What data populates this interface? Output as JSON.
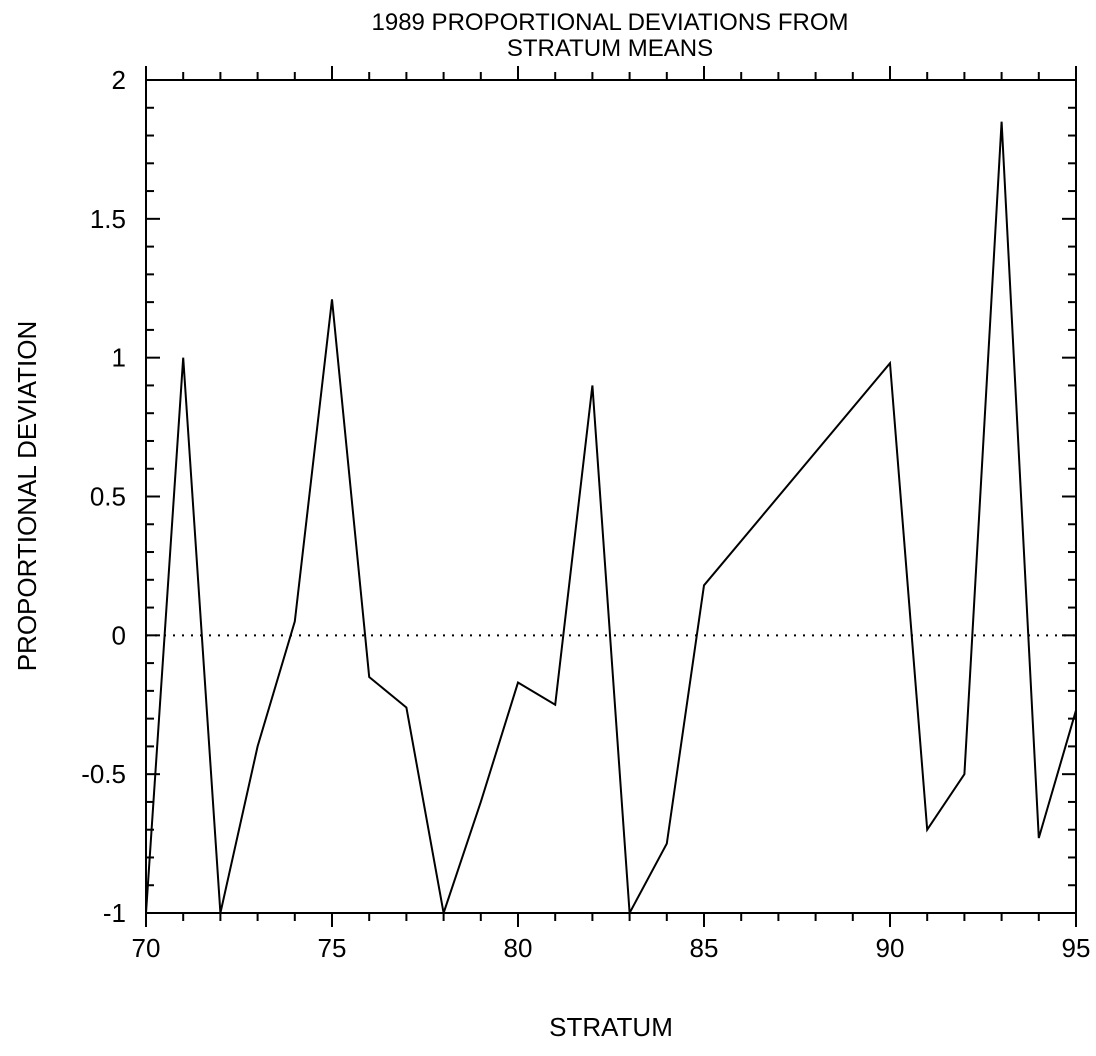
{
  "chart_data": {
    "type": "line",
    "title": [
      "1989 PROPORTIONAL DEVIATIONS FROM",
      "STRATUM MEANS"
    ],
    "x_label": "STRATUM",
    "y_label": "PROPORTIONAL DEVIATION",
    "x": [
      70,
      71,
      72,
      73,
      74,
      75,
      76,
      77,
      78,
      79,
      80,
      81,
      82,
      83,
      84,
      85,
      90,
      91,
      92,
      93,
      94,
      95
    ],
    "series": [
      {
        "color": "#000000",
        "values": [
          -1,
          1,
          -1,
          -0.4,
          0.05,
          1.21,
          -0.15,
          -0.26,
          -1,
          -0.6,
          -0.17,
          -0.25,
          0.9,
          -1,
          -0.75,
          0.18,
          0.98,
          -0.7,
          -0.5,
          1.85,
          -0.73,
          -0.27
        ]
      }
    ],
    "xlim": [
      70,
      95
    ],
    "ylim": [
      -1,
      2
    ],
    "xticks": [
      70,
      75,
      80,
      85,
      90,
      95
    ],
    "yticks": [
      -1,
      -0.5,
      0,
      0.5,
      1,
      1.5,
      2
    ],
    "xticks_minor": [
      71,
      72,
      73,
      74,
      76,
      77,
      78,
      79,
      81,
      82,
      83,
      84,
      86,
      87,
      88,
      89,
      91,
      92,
      93,
      94
    ],
    "yticks_minor": [
      -0.9,
      -0.8,
      -0.7,
      -0.6,
      -0.4,
      -0.3,
      -0.2,
      -0.1,
      0.1,
      0.2,
      0.3,
      0.4,
      0.6,
      0.7,
      0.8,
      0.9,
      1.1,
      1.2,
      1.3,
      1.4,
      1.6,
      1.7,
      1.8,
      1.9
    ],
    "reference_line": 0
  }
}
